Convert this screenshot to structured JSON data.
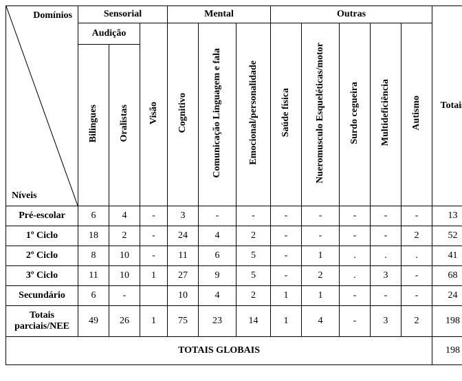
{
  "corner": {
    "top": "Domínios",
    "bottom": "Níveis"
  },
  "groups": {
    "sensorial": "Sensorial",
    "mental": "Mental",
    "outras": "Outras",
    "audicao": "Audição"
  },
  "cols": {
    "bilingues": "Bilingues",
    "oralistas": "Oralistas",
    "visao": "Visão",
    "cognitivo": "Cognitivo",
    "comunicacao": "Comunicação Linguagem e fala",
    "emocional": "Emocional/personalidade",
    "saude": "Saúde física",
    "nueromusculo": "Nueromusculo Esqueléticas/motor",
    "surdo": "Surdo cegueira",
    "multidef": "Multideficiência",
    "autismo": "Autismo",
    "totais": "Totais"
  },
  "rows": [
    {
      "label": "Pré-escolar",
      "cells": [
        "6",
        "4",
        "-",
        "3",
        "-",
        "-",
        "-",
        "-",
        "-",
        "-",
        "-",
        "13"
      ]
    },
    {
      "label": "1º Ciclo",
      "cells": [
        "18",
        "2",
        "-",
        "24",
        "4",
        "2",
        "-",
        "-",
        "-",
        "-",
        "2",
        "52"
      ]
    },
    {
      "label": "2º Ciclo",
      "cells": [
        "8",
        "10",
        "-",
        "11",
        "6",
        "5",
        "-",
        "1",
        ".",
        ".",
        ".",
        "41"
      ]
    },
    {
      "label": "3º Ciclo",
      "cells": [
        "11",
        "10",
        "1",
        "27",
        "9",
        "5",
        "-",
        "2",
        ".",
        "3",
        "-",
        "68"
      ]
    },
    {
      "label": "Secundário",
      "cells": [
        "6",
        "-",
        "",
        "10",
        "4",
        "2",
        "1",
        "1",
        "-",
        "-",
        "-",
        "24"
      ]
    },
    {
      "label": "Totais parciais/NEE",
      "cells": [
        "49",
        "26",
        "1",
        "75",
        "23",
        "14",
        "1",
        "4",
        "-",
        "3",
        "2",
        "198"
      ]
    }
  ],
  "globals": {
    "label": "TOTAIS GLOBAIS",
    "value": "198"
  },
  "style": {
    "font_family": "Times New Roman",
    "font_size_pt": 11,
    "border_color": "#000000",
    "background_color": "#ffffff",
    "text_color": "#000000"
  }
}
